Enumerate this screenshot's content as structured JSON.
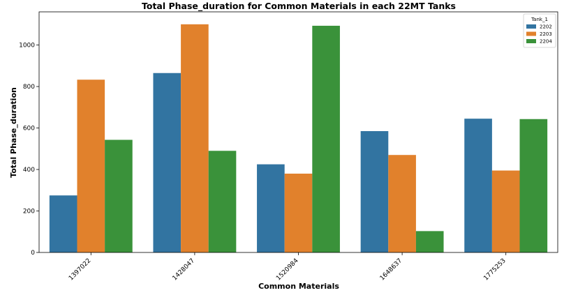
{
  "chart_data": {
    "type": "bar",
    "title": "Total Phase_duration for Common Materials in each 22MT Tanks",
    "xlabel": "Common Materials",
    "ylabel": "Total Phase_duration",
    "categories": [
      "1397022",
      "1428047",
      "1520984",
      "1648637",
      "1775253"
    ],
    "series": [
      {
        "name": "2202",
        "values": [
          275,
          865,
          425,
          585,
          645
        ],
        "color": "#3274a1"
      },
      {
        "name": "2203",
        "values": [
          833,
          1100,
          380,
          470,
          395
        ],
        "color": "#e1812c"
      },
      {
        "name": "2204",
        "values": [
          543,
          490,
          1093,
          103,
          643
        ],
        "color": "#3a923a"
      }
    ],
    "ylim": [
      0,
      1160
    ],
    "yticks": [
      0,
      200,
      400,
      600,
      800,
      1000
    ],
    "legend": {
      "title": "Tank_1",
      "position": "top-right"
    },
    "grid": false
  }
}
